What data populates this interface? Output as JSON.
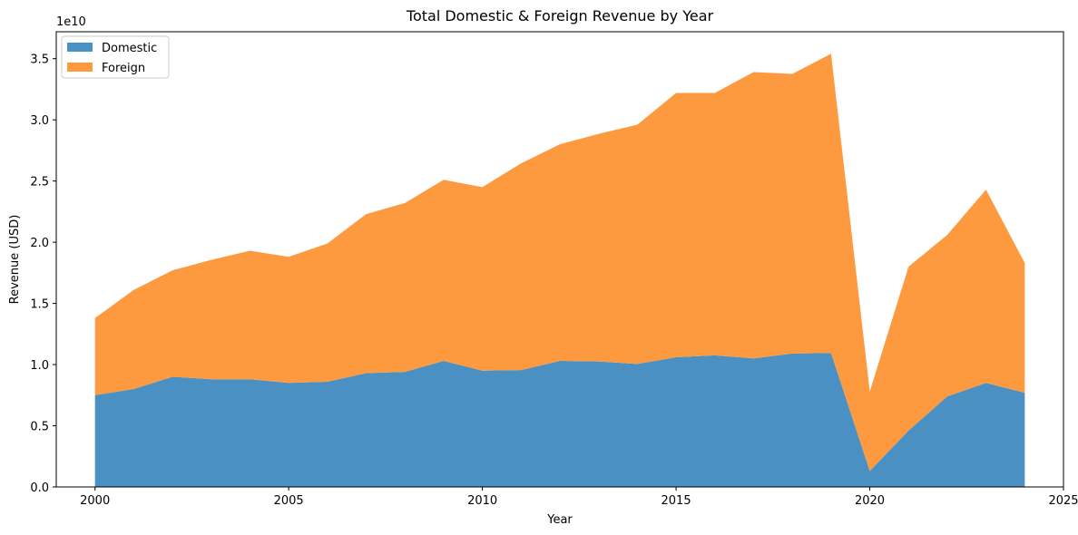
{
  "chart_data": {
    "type": "area",
    "stacked": true,
    "title": "Total Domestic & Foreign Revenue by Year",
    "xlabel": "Year",
    "ylabel": "Revenue (USD)",
    "y_offset_label": "1e10",
    "xlim": [
      1999,
      2025
    ],
    "ylim": [
      0,
      37200000000.0
    ],
    "x_ticks": [
      2000,
      2005,
      2010,
      2015,
      2020,
      2025
    ],
    "x_tick_labels": [
      "2000",
      "2005",
      "2010",
      "2015",
      "2020",
      "2025"
    ],
    "y_ticks": [
      0,
      5000000000.0,
      10000000000.0,
      15000000000.0,
      20000000000.0,
      25000000000.0,
      30000000000.0,
      35000000000.0
    ],
    "y_tick_labels": [
      "0.0",
      "0.5",
      "1.0",
      "1.5",
      "2.0",
      "2.5",
      "3.0",
      "3.5"
    ],
    "grid": false,
    "legend_position": "top-left",
    "x": [
      2000,
      2001,
      2002,
      2003,
      2004,
      2005,
      2006,
      2007,
      2008,
      2009,
      2010,
      2011,
      2012,
      2013,
      2014,
      2015,
      2016,
      2017,
      2018,
      2019,
      2020,
      2021,
      2022,
      2023,
      2024
    ],
    "series": [
      {
        "name": "Domestic",
        "color": "#4a90c2",
        "values": [
          7500000000.0,
          8000000000.0,
          9000000000.0,
          8800000000.0,
          8800000000.0,
          8500000000.0,
          8600000000.0,
          9300000000.0,
          9400000000.0,
          10300000000.0,
          9500000000.0,
          9550000000.0,
          10300000000.0,
          10250000000.0,
          10050000000.0,
          10600000000.0,
          10750000000.0,
          10500000000.0,
          10900000000.0,
          10950000000.0,
          1300000000.0,
          4600000000.0,
          7400000000.0,
          8500000000.0,
          7700000000.0
        ]
      },
      {
        "name": "Foreign",
        "color": "#fd9a40",
        "values": [
          6300000000.0,
          8100000000.0,
          8700000000.0,
          9750000000.0,
          10500000000.0,
          10300000000.0,
          11300000000.0,
          13000000000.0,
          13800000000.0,
          14800000000.0,
          15000000000.0,
          16900000000.0,
          17700000000.0,
          18600000000.0,
          19550000000.0,
          21600000000.0,
          21450000000.0,
          23400000000.0,
          22850000000.0,
          24450000000.0,
          6500000000.0,
          13400000000.0,
          13200000000.0,
          15800000000.0,
          10600000000.0
        ]
      }
    ]
  }
}
